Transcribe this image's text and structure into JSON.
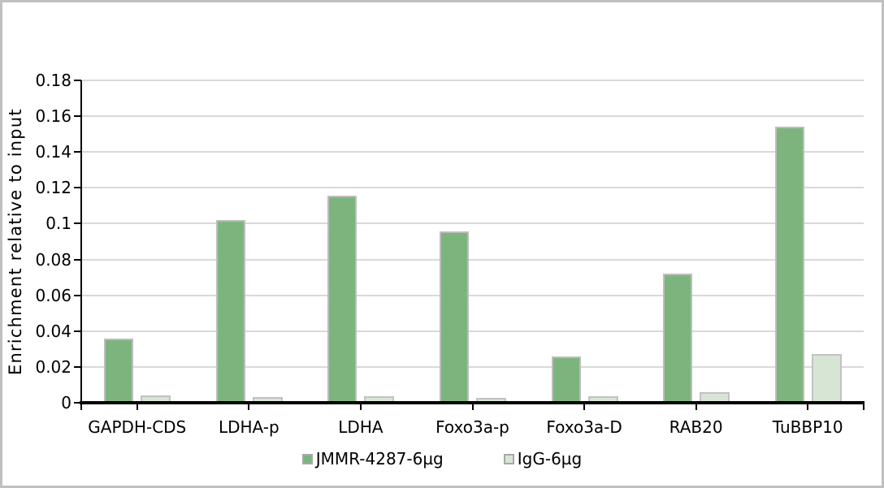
{
  "chart_data": {
    "type": "bar",
    "title": "",
    "ylabel": "Enrichment relative to input",
    "xlabel": "",
    "ylim": [
      0,
      0.18
    ],
    "ytick_step": 0.02,
    "ytick_labels": [
      "0",
      "0.02",
      "0.04",
      "0.06",
      "0.08",
      "0.1",
      "0.12",
      "0.14",
      "0.16",
      "0.18"
    ],
    "grid": true,
    "legend_position": "bottom-center",
    "categories": [
      "GAPDH-CDS",
      "LDHA-p",
      "LDHA",
      "Foxo3a-p",
      "Foxo3a-D",
      "RAB20",
      "TuBBP10"
    ],
    "series": [
      {
        "name": "JMMR-4287-6µg",
        "fill": "#7db47e",
        "border": "#bdbdbd",
        "values": [
          0.036,
          0.102,
          0.1155,
          0.0955,
          0.026,
          0.072,
          0.154
        ]
      },
      {
        "name": "IgG-6µg",
        "fill": "#d7e5d5",
        "border": "#c2c2c2",
        "values": [
          0.004,
          0.003,
          0.0035,
          0.0025,
          0.0035,
          0.006,
          0.027
        ]
      }
    ],
    "colors": {
      "gridline": "#d9d9d9",
      "axis": "#000000",
      "text": "#000000",
      "frame_border": "#c0c0c0",
      "background": "#ffffff"
    }
  }
}
